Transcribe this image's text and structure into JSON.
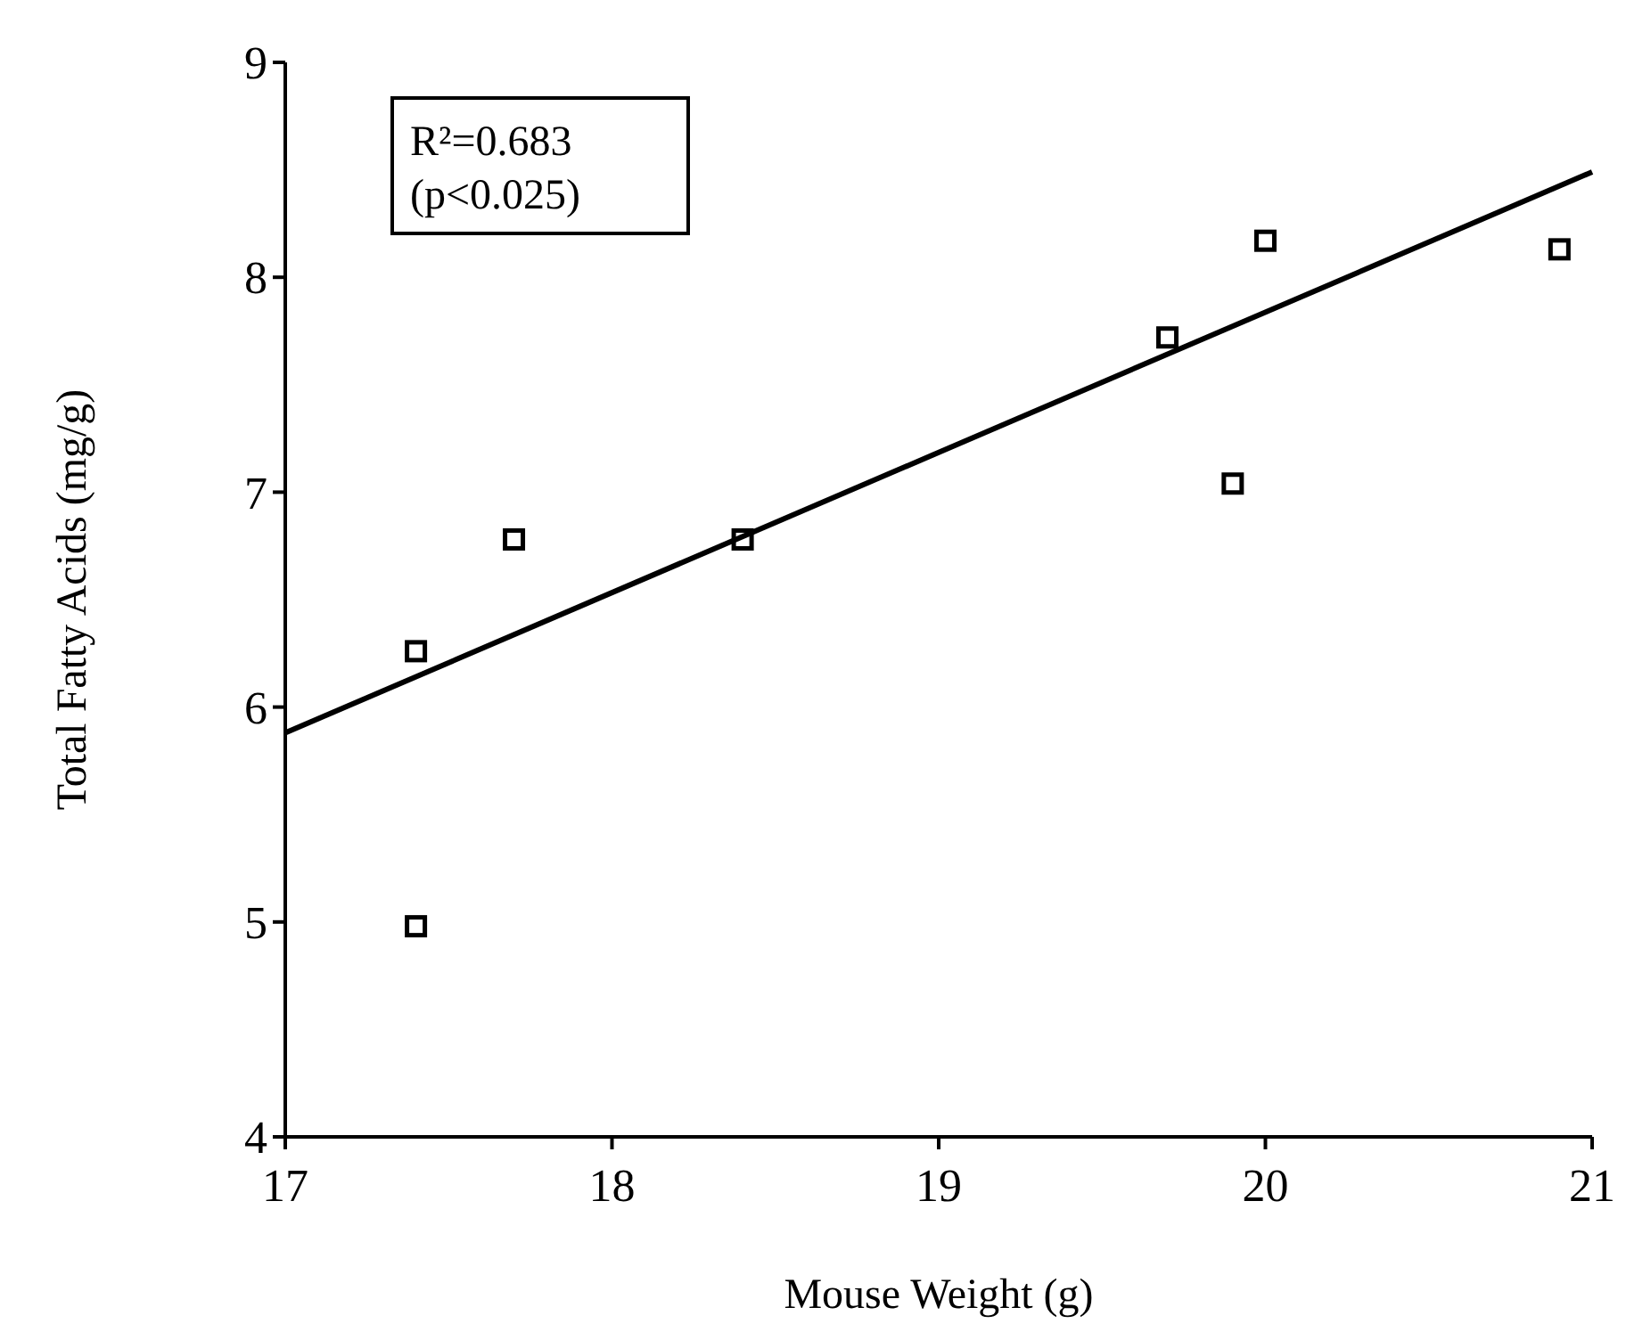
{
  "chart_data": {
    "type": "scatter",
    "xlabel": "Mouse Weight (g)",
    "ylabel": "Total Fatty Acids (mg/g)",
    "annotations": [
      "R²=0.683\n(p<0.025)"
    ],
    "xlim": [
      17,
      21
    ],
    "xticks": [
      17,
      18,
      19,
      20,
      21
    ],
    "ylim": [
      4,
      9
    ],
    "yticks": [
      4,
      5,
      6,
      7,
      8,
      9
    ],
    "grid": false,
    "series": [
      {
        "marker": "square",
        "color": "#000000",
        "x": [
          17.4,
          17.4,
          17.7,
          18.4,
          19.7,
          19.9,
          20.0,
          20.9
        ],
        "values": [
          6.26,
          4.98,
          6.78,
          6.78,
          7.72,
          7.04,
          8.17,
          8.13
        ]
      },
      {
        "type": "line",
        "color": "#000000",
        "line_style": "solid",
        "x": [
          17,
          21
        ],
        "values": [
          5.88,
          8.49
        ]
      }
    ]
  }
}
